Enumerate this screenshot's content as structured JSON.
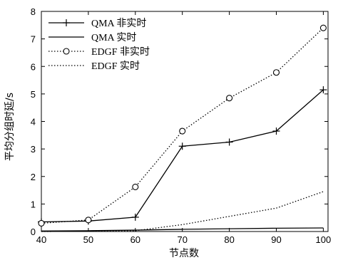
{
  "chart_data": {
    "type": "line",
    "title": "",
    "xlabel": "节点数",
    "ylabel": "平均分组时延/s",
    "x": [
      40,
      50,
      60,
      70,
      80,
      90,
      100
    ],
    "xlim": [
      40,
      101
    ],
    "ylim": [
      0,
      8
    ],
    "xticks": [
      "40",
      "50",
      "60",
      "70",
      "80",
      "90",
      "100"
    ],
    "yticks": [
      "0",
      "1",
      "2",
      "3",
      "4",
      "5",
      "6",
      "7",
      "8"
    ],
    "grid": false,
    "legend_position": "top-left",
    "series": [
      {
        "name": "QMA 非实时",
        "style": "solid",
        "marker": "plus",
        "values": [
          0.35,
          0.38,
          0.52,
          3.1,
          3.25,
          3.65,
          5.15
        ]
      },
      {
        "name": "QMA 实时",
        "style": "solid",
        "marker": "none",
        "values": [
          0.02,
          0.03,
          0.05,
          0.08,
          0.1,
          0.12,
          0.13
        ]
      },
      {
        "name": "EDGF 非实时",
        "style": "dotted",
        "marker": "circle",
        "values": [
          0.3,
          0.42,
          1.62,
          3.65,
          4.85,
          5.78,
          7.4
        ]
      },
      {
        "name": "EDGF 实时",
        "style": "dotted",
        "marker": "none",
        "values": [
          0.0,
          0.01,
          0.03,
          0.25,
          0.55,
          0.85,
          1.45
        ]
      }
    ]
  }
}
